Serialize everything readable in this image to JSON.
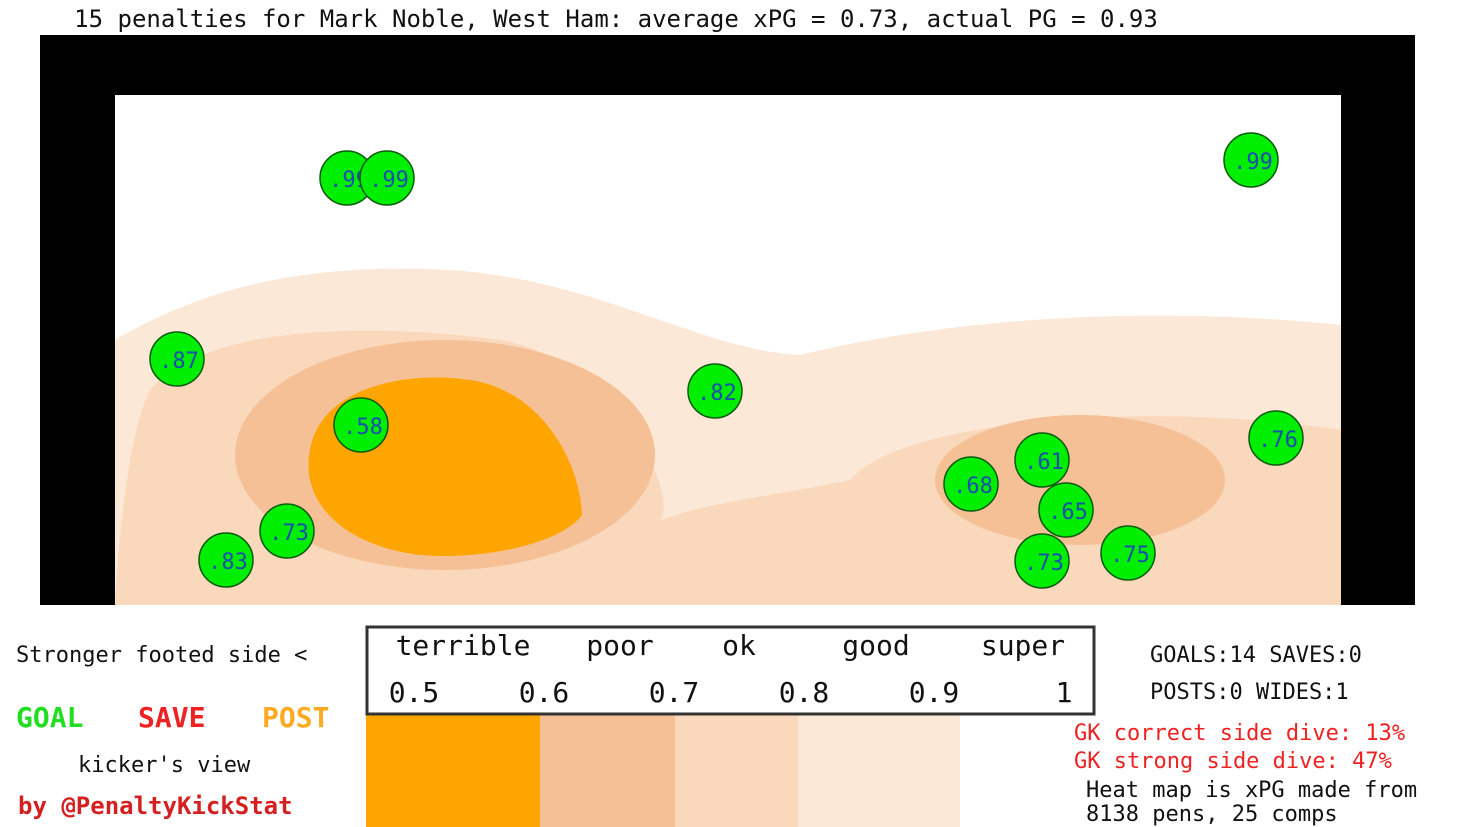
{
  "chart_data": {
    "type": "scatter",
    "title": "15 penalties for Mark Noble, West Ham: average xPG = 0.73, actual PG = 0.93",
    "values": [
      0.99,
      0.99,
      0.99,
      0.87,
      0.58,
      0.82,
      0.76,
      0.61,
      0.68,
      0.65,
      0.73,
      0.83,
      0.73,
      0.75
    ],
    "value_labels": [
      ".99",
      ".99",
      ".99",
      ".87",
      ".58",
      ".82",
      ".76",
      ".61",
      ".68",
      ".65",
      ".73",
      ".83",
      ".73",
      ".75"
    ],
    "color": "#00ee00",
    "scale_categories": [
      "terrible",
      "poor",
      "ok",
      "good",
      "super"
    ],
    "scale_ticks": [
      0.5,
      0.6,
      0.7,
      0.8,
      0.9,
      1
    ],
    "side_note": "Stronger footed side <",
    "legend": [
      {
        "name": "GOAL",
        "color": "#22dd22"
      },
      {
        "name": "SAVE",
        "color": "#ee2222"
      },
      {
        "name": "POST",
        "color": "#ffaa22"
      }
    ],
    "view_note": "kicker's view",
    "credit": "by @PenaltyKickStat",
    "stats": [
      "GOALS:14 SAVES:0",
      "POSTS:0 WIDES:1"
    ],
    "gk_stats": [
      "GK correct side dive: 13%",
      "GK strong side dive: 47%"
    ],
    "footnote": [
      "Heat map is xPG made from",
      "8138 pens, 25 comps"
    ]
  }
}
